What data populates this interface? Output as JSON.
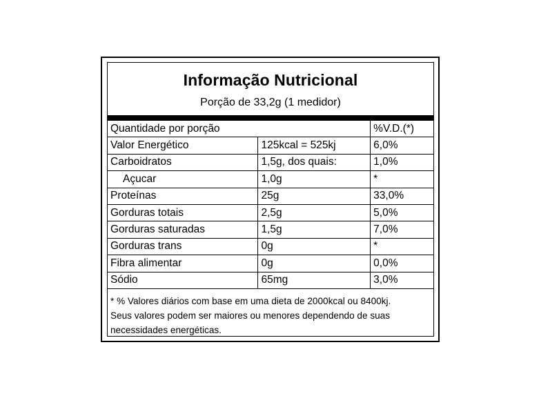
{
  "label": {
    "title": "Informação Nutricional",
    "serving": "Porção de 33,2g (1 medidor)",
    "header": {
      "quantity": "Quantidade por porção",
      "dv": "%V.D.(*)"
    },
    "rows": [
      {
        "name": "Valor Energético",
        "amount": "125kcal = 525kj",
        "dv": "6,0%"
      },
      {
        "name": "Carboidratos",
        "amount": "1,5g, dos quais:",
        "dv": "1,0%"
      },
      {
        "name": "Açucar",
        "amount": "1,0g",
        "dv": "*"
      },
      {
        "name": "Proteínas",
        "amount": "25g",
        "dv": "33,0%"
      },
      {
        "name": "Gorduras totais",
        "amount": "2,5g",
        "dv": "5,0%"
      },
      {
        "name": "Gorduras saturadas",
        "amount": "1,5g",
        "dv": "7,0%"
      },
      {
        "name": "Gorduras trans",
        "amount": "0g",
        "dv": "*"
      },
      {
        "name": "Fibra alimentar",
        "amount": "0g",
        "dv": "0,0%"
      },
      {
        "name": "Sódio",
        "amount": "65mg",
        "dv": "3,0%"
      }
    ],
    "footnote": [
      "* % Valores diários com base em uma dieta de 2000kcal ou 8400kj.",
      "Seus valores podem ser maiores ou menores dependendo de suas",
      "necessidades energéticas."
    ]
  }
}
